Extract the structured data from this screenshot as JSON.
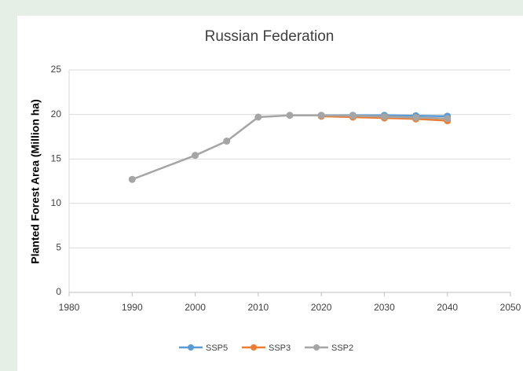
{
  "chart_data": {
    "type": "line",
    "title": "Russian Federation",
    "y_label": "Planted Forest Area (Million ha)",
    "xlim": [
      1980,
      2050
    ],
    "xticks": [
      1980,
      1990,
      2000,
      2010,
      2020,
      2030,
      2040,
      2050
    ],
    "ylim": [
      0,
      25
    ],
    "yticks": [
      0,
      5,
      10,
      15,
      20,
      25
    ],
    "grid": true,
    "legend": "bottom",
    "series": [
      {
        "name": "SSP5",
        "color": "#5b9bd5",
        "x": [
          2020,
          2025,
          2030,
          2035,
          2040
        ],
        "values": [
          19.9,
          19.9,
          19.9,
          19.85,
          19.8
        ]
      },
      {
        "name": "SSP3",
        "color": "#ed7d31",
        "x": [
          2020,
          2025,
          2030,
          2035,
          2040
        ],
        "values": [
          19.8,
          19.7,
          19.6,
          19.5,
          19.3
        ]
      },
      {
        "name": "SSP2",
        "color": "#a5a5a5",
        "x": [
          1990,
          2000,
          2005,
          2010,
          2015,
          2020,
          2025,
          2030,
          2035,
          2040
        ],
        "values": [
          12.7,
          15.4,
          17.0,
          19.7,
          19.9,
          19.9,
          19.85,
          19.75,
          19.65,
          19.55
        ]
      }
    ]
  }
}
